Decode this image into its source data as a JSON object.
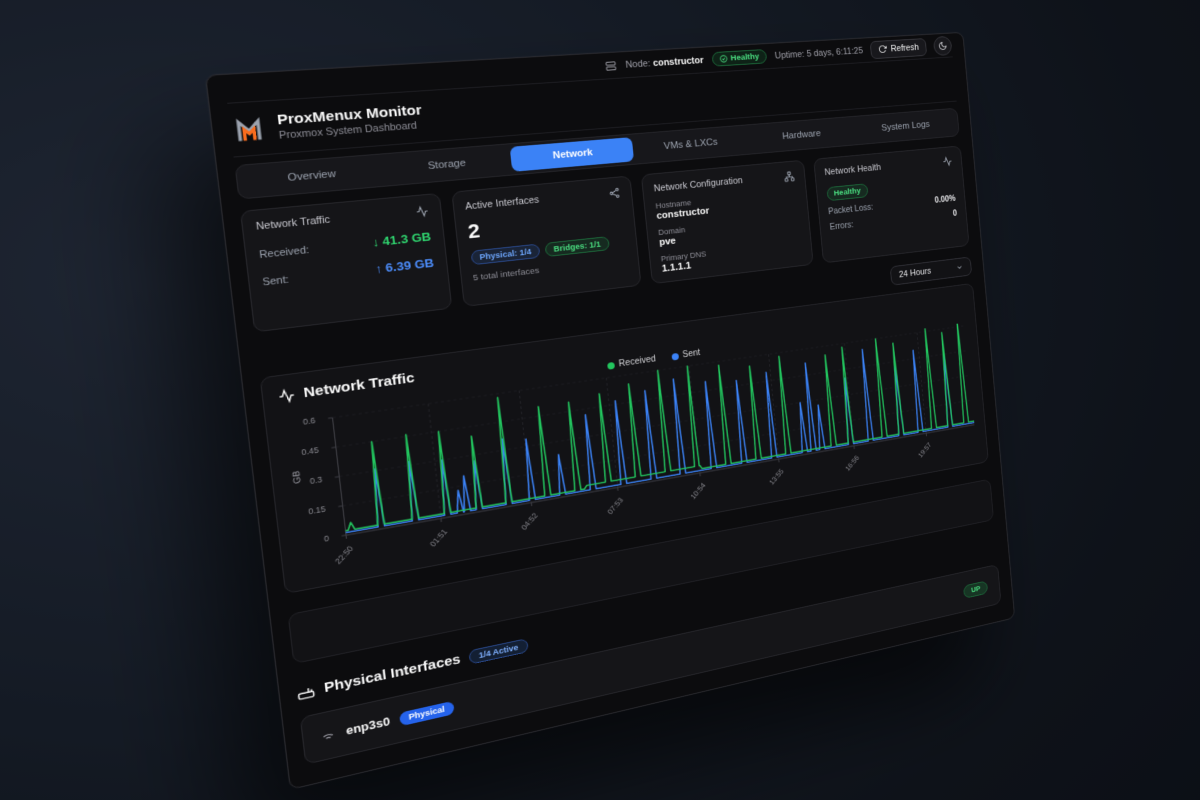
{
  "topbar": {
    "node_label": "Node:",
    "node_value": "constructor",
    "health_badge": "Healthy",
    "uptime": "Uptime: 5 days, 6:11:25",
    "refresh_label": "Refresh"
  },
  "header": {
    "title": "ProxMenux Monitor",
    "subtitle": "Proxmox System Dashboard"
  },
  "tabs": [
    {
      "label": "Overview",
      "active": false
    },
    {
      "label": "Storage",
      "active": false
    },
    {
      "label": "Network",
      "active": true
    },
    {
      "label": "VMs & LXCs",
      "active": false
    },
    {
      "label": "Hardware",
      "active": false
    },
    {
      "label": "System Logs",
      "active": false
    }
  ],
  "cards": {
    "traffic": {
      "title": "Network Traffic",
      "received_label": "Received:",
      "received_value": "↓ 41.3 GB",
      "sent_label": "Sent:",
      "sent_value": "↑ 6.39 GB"
    },
    "interfaces": {
      "title": "Active Interfaces",
      "count": "2",
      "physical_badge": "Physical: 1/4",
      "bridges_badge": "Bridges: 1/1",
      "total": "5 total interfaces"
    },
    "config": {
      "title": "Network Configuration",
      "hostname_label": "Hostname",
      "hostname": "constructor",
      "domain_label": "Domain",
      "domain": "pve",
      "dns_label": "Primary DNS",
      "dns": "1.1.1.1"
    },
    "health": {
      "title": "Network Health",
      "status": "Healthy",
      "packet_loss_label": "Packet Loss:",
      "packet_loss": "0.00%",
      "errors_label": "Errors:",
      "errors": "0"
    }
  },
  "time_range": {
    "selected": "24 Hours"
  },
  "chart_data": {
    "type": "line",
    "title": "Network Traffic",
    "ylabel": "GB",
    "ylim": [
      0,
      0.6
    ],
    "y_ticks": [
      0,
      0.15,
      0.3,
      0.45,
      0.6
    ],
    "x_ticks": [
      "22:50",
      "01:51",
      "04:52",
      "07:53",
      "10:54",
      "13:55",
      "16:56",
      "19:57"
    ],
    "legend": [
      "Received",
      "Sent"
    ],
    "legend_position": "top-center",
    "grid": "dashed",
    "colors": {
      "received": "#22c55e",
      "sent": "#3b82f6"
    },
    "baseline_gb": {
      "received": 0.022,
      "sent": 0.013
    },
    "received_base_bump": {
      "from": 0.34,
      "to": 0.52,
      "value": 0.04
    },
    "spikes": [
      {
        "x": 0.008,
        "received": 0.06
      },
      {
        "x": 0.048,
        "received": 0.45,
        "sent": 0.31
      },
      {
        "x": 0.095,
        "received": 0.46,
        "sent": 0.32
      },
      {
        "x": 0.14,
        "received": 0.45,
        "sent": 0.3
      },
      {
        "x": 0.158,
        "sent": 0.13
      },
      {
        "x": 0.168,
        "sent": 0.2
      },
      {
        "x": 0.185,
        "received": 0.4,
        "sent": 0.27
      },
      {
        "x": 0.228,
        "received": 0.58,
        "sent": 0.36
      },
      {
        "x": 0.262,
        "sent": 0.34
      },
      {
        "x": 0.285,
        "received": 0.5
      },
      {
        "x": 0.307,
        "sent": 0.23
      },
      {
        "x": 0.33,
        "received": 0.5
      },
      {
        "x": 0.353,
        "sent": 0.42
      },
      {
        "x": 0.377,
        "received": 0.52
      },
      {
        "x": 0.4,
        "sent": 0.47
      },
      {
        "x": 0.423,
        "received": 0.55
      },
      {
        "x": 0.447,
        "sent": 0.5
      },
      {
        "x": 0.47,
        "received": 0.6
      },
      {
        "x": 0.493,
        "sent": 0.54
      },
      {
        "x": 0.517,
        "received": 0.6
      },
      {
        "x": 0.543,
        "sent": 0.5
      },
      {
        "x": 0.567,
        "received": 0.58
      },
      {
        "x": 0.593,
        "sent": 0.48
      },
      {
        "x": 0.617,
        "received": 0.55
      },
      {
        "x": 0.643,
        "sent": 0.5
      },
      {
        "x": 0.667,
        "received": 0.58
      },
      {
        "x": 0.695,
        "sent": 0.3
      },
      {
        "x": 0.71,
        "sent": 0.52
      },
      {
        "x": 0.725,
        "sent": 0.27
      },
      {
        "x": 0.745,
        "received": 0.55
      },
      {
        "x": 0.775,
        "received": 0.58,
        "sent": 0.4
      },
      {
        "x": 0.81,
        "sent": 0.55
      },
      {
        "x": 0.835,
        "received": 0.6
      },
      {
        "x": 0.865,
        "received": 0.56,
        "sent": 0.43
      },
      {
        "x": 0.9,
        "sent": 0.5
      },
      {
        "x": 0.925,
        "received": 0.62
      },
      {
        "x": 0.955,
        "received": 0.58,
        "sent": 0.45
      },
      {
        "x": 0.985,
        "received": 0.65
      }
    ]
  },
  "physical_interfaces": {
    "section_title": "Physical Interfaces",
    "active_badge": "1/4 Active",
    "rows": [
      {
        "name": "enp3s0",
        "type_badge": "Physical",
        "status_badge": "UP"
      }
    ]
  }
}
